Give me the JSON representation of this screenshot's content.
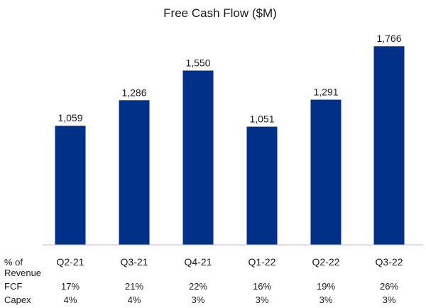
{
  "chart_data": {
    "type": "bar",
    "title": "Free Cash Flow ($M)",
    "categories": [
      "Q2-21",
      "Q3-21",
      "Q4-21",
      "Q1-22",
      "Q2-22",
      "Q3-22"
    ],
    "values": [
      1059,
      1286,
      1550,
      1051,
      1291,
      1766
    ],
    "value_labels": [
      "1,059",
      "1,286",
      "1,550",
      "1,051",
      "1,291",
      "1,766"
    ],
    "ylim": [
      0,
      1900
    ],
    "grid": false,
    "bar_color": "#003087",
    "table": {
      "header": [
        "% of",
        "Revenue"
      ],
      "rows": [
        {
          "label": "FCF",
          "values": [
            "17%",
            "21%",
            "22%",
            "16%",
            "19%",
            "26%"
          ]
        },
        {
          "label": "Capex",
          "values": [
            "4%",
            "4%",
            "3%",
            "3%",
            "3%",
            "3%"
          ]
        }
      ]
    }
  }
}
